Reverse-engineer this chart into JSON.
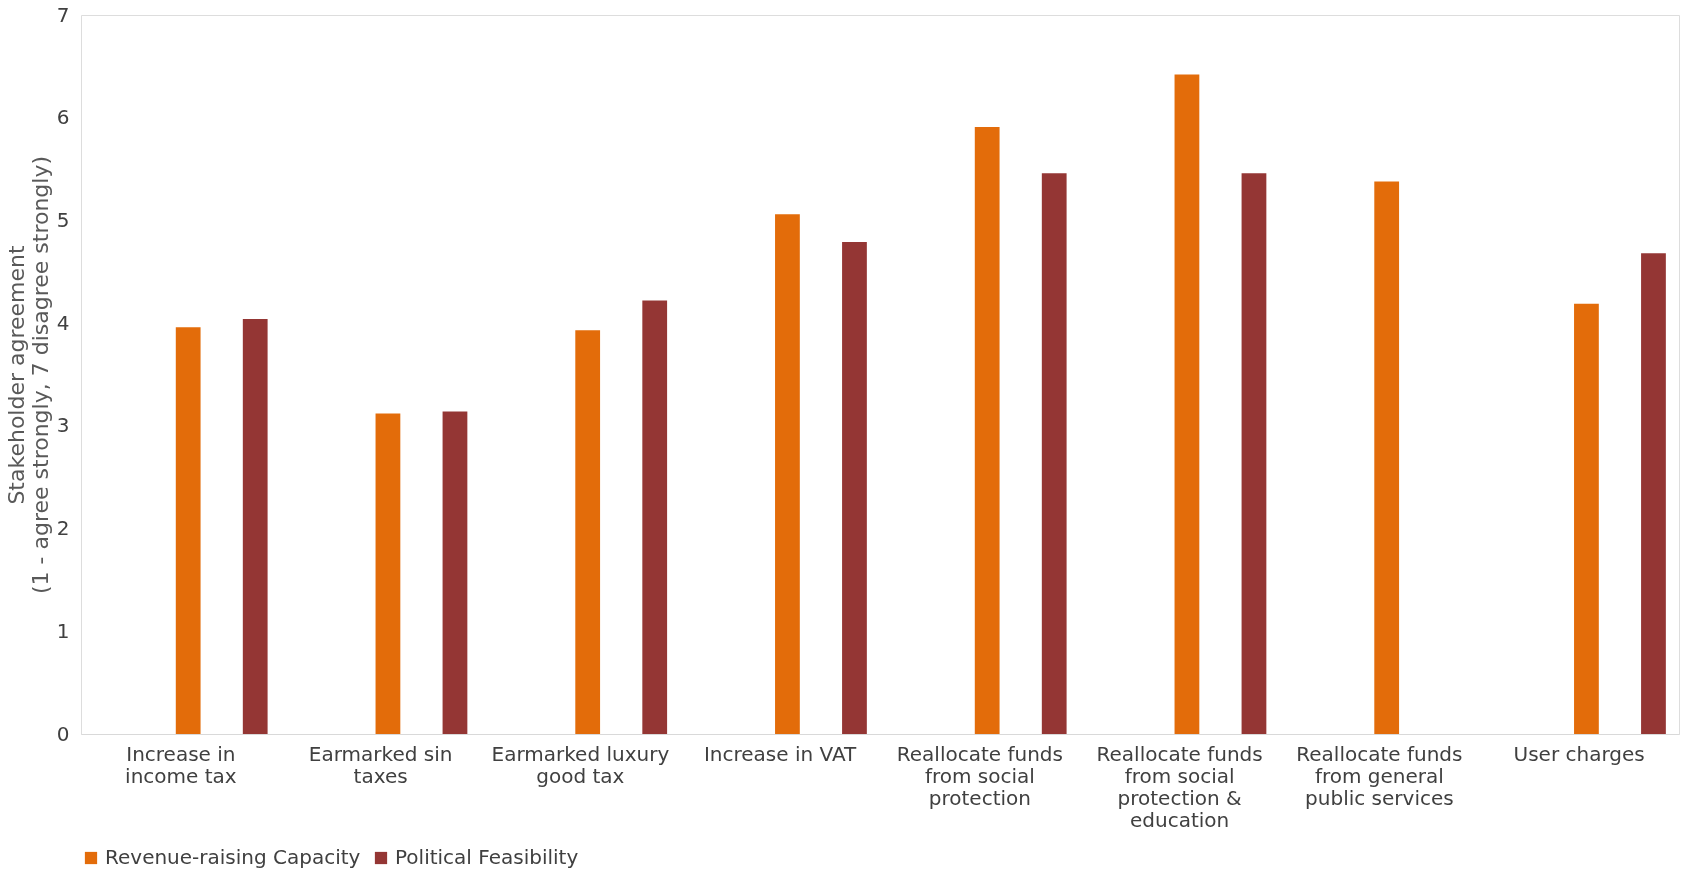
{
  "chart_data": {
    "type": "bar",
    "ylabel": "Stakeholder agreement\n(1 - agree strongly, 7 disagree strongly)",
    "categories": [
      "Increase in income tax",
      "Earmarked sin taxes",
      "Earmarked luxury good tax",
      "Increase in VAT",
      "Reallocate funds from social protection",
      "Reallocate funds from social protection & education",
      "Reallocate funds from general public services",
      "User charges"
    ],
    "series": [
      {
        "name": "Revenue-raising Capacity",
        "color": "#e36c0a",
        "values": [
          3.96,
          3.12,
          3.93,
          5.06,
          5.91,
          6.42,
          5.38,
          4.19
        ]
      },
      {
        "name": "Political Feasibility",
        "color": "#943634",
        "values": [
          4.04,
          3.14,
          4.22,
          4.79,
          5.46,
          5.46,
          null,
          4.68
        ]
      }
    ],
    "ylim": [
      0,
      7
    ],
    "yticks": [
      0,
      1,
      2,
      3,
      4,
      5,
      6,
      7
    ],
    "grid": false,
    "legend": "bottom"
  }
}
